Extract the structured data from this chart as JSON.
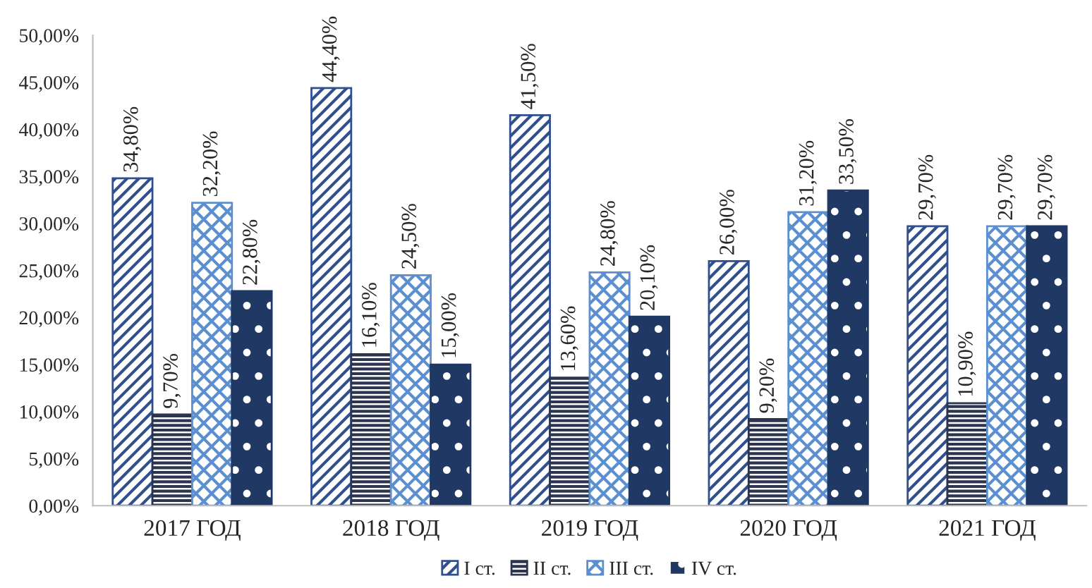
{
  "chart_data": {
    "type": "bar",
    "categories": [
      "2017 ГОД",
      "2018 ГОД",
      "2019 ГОД",
      "2020 ГОД",
      "2021 ГОД"
    ],
    "series": [
      {
        "name": "I ст.",
        "color": "#2f4f8f",
        "values": [
          34.8,
          44.4,
          41.5,
          26.0,
          29.7
        ],
        "value_labels": [
          "34,80%",
          "44,40%",
          "41,50%",
          "26,00%",
          "29,70%"
        ]
      },
      {
        "name": "II ст.",
        "color": "#2b3550",
        "values": [
          9.7,
          16.1,
          13.6,
          9.2,
          10.9
        ],
        "value_labels": [
          "9,70%",
          "16,10%",
          "13,60%",
          "9,20%",
          "10,90%"
        ]
      },
      {
        "name": "III ст.",
        "color": "#5b8fd0",
        "values": [
          32.2,
          24.5,
          24.8,
          31.2,
          29.7
        ],
        "value_labels": [
          "32,20%",
          "24,50%",
          "24,80%",
          "31,20%",
          "29,70%"
        ]
      },
      {
        "name": "IV ст.",
        "color": "#1f3864",
        "values": [
          22.8,
          15.0,
          20.1,
          33.5,
          29.7
        ],
        "value_labels": [
          "22,80%",
          "15,00%",
          "20,10%",
          "33,50%",
          "29,70%"
        ]
      }
    ],
    "ylim": [
      0,
      50
    ],
    "yticks": [
      {
        "value": 0,
        "label": "0,00%"
      },
      {
        "value": 5,
        "label": "5,00%"
      },
      {
        "value": 10,
        "label": "10,00%"
      },
      {
        "value": 15,
        "label": "15,00%"
      },
      {
        "value": 20,
        "label": "20,00%"
      },
      {
        "value": 25,
        "label": "25,00%"
      },
      {
        "value": 30,
        "label": "30,00%"
      },
      {
        "value": 35,
        "label": "35,00%"
      },
      {
        "value": 40,
        "label": "40,00%"
      },
      {
        "value": 45,
        "label": "45,00%"
      },
      {
        "value": 50,
        "label": "50,00%"
      }
    ],
    "grid": false,
    "legend": "bottom"
  }
}
